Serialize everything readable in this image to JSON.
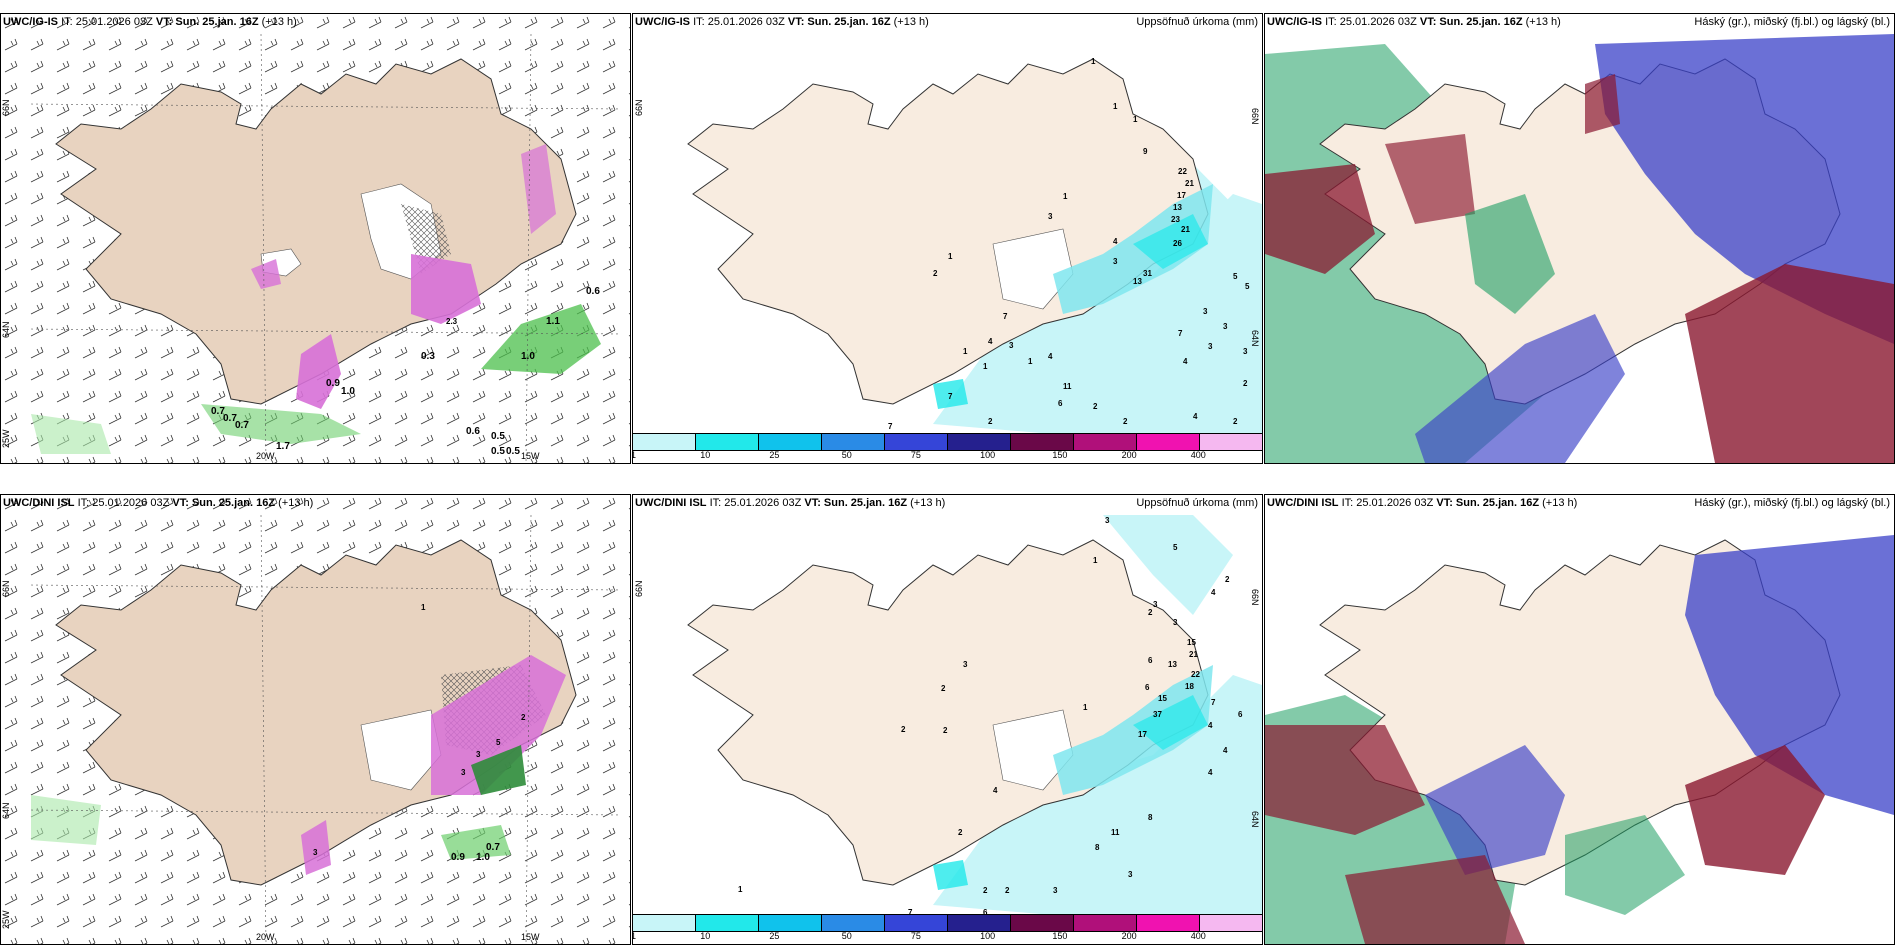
{
  "panels": [
    {
      "model": "UWC/IG-IS",
      "it": "IT: 25.01.2026 03Z",
      "vt_label": "VT:",
      "vt": "Sun. 25.jan. 16Z",
      "lead": "(+13 h)",
      "right_title": "",
      "axes": {
        "lat_top": "66N",
        "lat_mid": "64N",
        "lon_left": "20W",
        "lon_right": "15W",
        "corner": "25W"
      },
      "labels": [
        "0.6",
        "1.1",
        "1.0",
        "1.0",
        "0.9",
        "0.5",
        "0.7",
        "0.7",
        "0.7",
        "0.3",
        "0.6",
        "0.5",
        "0.5",
        "1.7",
        "2.3"
      ]
    },
    {
      "model": "UWC/IG-IS",
      "it": "IT: 25.01.2026 03Z",
      "vt_label": "VT:",
      "vt": "Sun. 25.jan. 16Z",
      "lead": "(+13 h)",
      "right_title": "Uppsöfnuð úrkoma (mm)",
      "axes": {
        "lat_top": "66N",
        "lat_mid": "64N"
      },
      "labels": [
        "1",
        "1",
        "1",
        "9",
        "22",
        "21",
        "17",
        "13",
        "23",
        "21",
        "26",
        "1",
        "3",
        "4",
        "3",
        "1",
        "2",
        "7",
        "13",
        "31",
        "5",
        "5",
        "3",
        "3",
        "7",
        "3",
        "3",
        "4",
        "11",
        "4",
        "1",
        "1",
        "1",
        "3",
        "7",
        "4",
        "2",
        "6",
        "4",
        "2",
        "2",
        "7",
        "2",
        "2"
      ]
    },
    {
      "model": "UWC/IG-IS",
      "it": "IT: 25.01.2026 03Z",
      "vt_label": "VT:",
      "vt": "Sun. 25.jan. 16Z",
      "lead": "(+13 h)",
      "right_title": "Háský (gr.), miðský (fj.bl.) og lágský (bl.)",
      "axes": {},
      "labels": []
    },
    {
      "model": "UWC/DINI ISL",
      "it": "IT: 25.01.2026 03Z",
      "vt_label": "VT:",
      "vt": "Sun. 25.jan. 16Z",
      "lead": "(+13 h)",
      "right_title": "",
      "axes": {
        "lat_top": "66N",
        "lat_mid": "64N",
        "lon_left": "20W",
        "lon_right": "15W",
        "corner": "25W"
      },
      "labels": [
        "0.7",
        "0.9",
        "1.0",
        "2",
        "5",
        "3",
        "3",
        "3",
        "1"
      ]
    },
    {
      "model": "UWC/DINI ISL",
      "it": "IT: 25.01.2026 03Z",
      "vt_label": "VT:",
      "vt": "Sun. 25.jan. 16Z",
      "lead": "(+13 h)",
      "right_title": "Uppsöfnuð úrkoma (mm)",
      "axes": {
        "lat_top": "66N",
        "lat_mid": "64N"
      },
      "labels": [
        "3",
        "5",
        "2",
        "4",
        "1",
        "3",
        "2",
        "3",
        "15",
        "21",
        "13",
        "22",
        "18",
        "15",
        "37",
        "17",
        "6",
        "7",
        "4",
        "6",
        "4",
        "6",
        "3",
        "2",
        "2",
        "2",
        "1",
        "4",
        "2",
        "11",
        "8",
        "3",
        "8",
        "2",
        "2",
        "3",
        "7",
        "6",
        "1",
        "4"
      ]
    },
    {
      "model": "UWC/DINI ISL",
      "it": "IT: 25.01.2026 03Z",
      "vt_label": "VT:",
      "vt": "Sun. 25.jan. 16Z",
      "lead": "(+13 h)",
      "right_title": "Háský (gr.), miðský (fj.bl.) og lágský (bl.)",
      "axes": {},
      "labels": []
    }
  ],
  "colorbar": {
    "ticks": [
      "1",
      "10",
      "25",
      "50",
      "75",
      "100",
      "150",
      "200",
      "400"
    ],
    "colors": [
      "#c8f5f8",
      "#22e8ea",
      "#10c2ec",
      "#2a8be6",
      "#3545d8",
      "#25208e",
      "#6a0848",
      "#b0107a",
      "#f012b0",
      "#f5b8f0"
    ]
  },
  "colors": {
    "land": "#f8ece0",
    "land_wind": "#efe1d3",
    "wind_green": "#6ccf6c",
    "precip_pink": "#d770d7",
    "cloud_high": "#1d9e62",
    "cloud_mid": "#3a40c8",
    "cloud_low": "#8a1830"
  }
}
